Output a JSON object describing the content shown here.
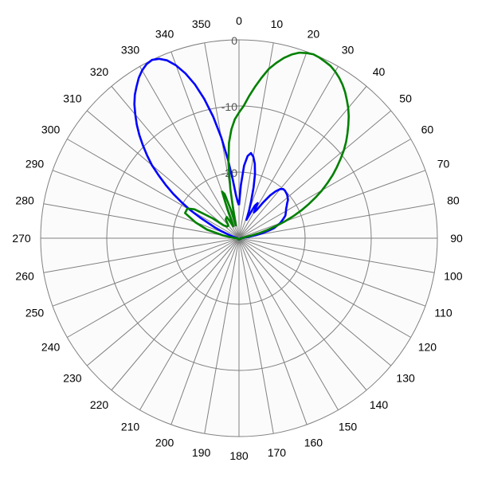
{
  "chart_data": {
    "type": "polar-line",
    "angle_labels": [
      "0",
      "10",
      "20",
      "30",
      "40",
      "50",
      "60",
      "70",
      "80",
      "90",
      "100",
      "110",
      "120",
      "130",
      "140",
      "150",
      "160",
      "170",
      "180",
      "190",
      "200",
      "210",
      "220",
      "230",
      "240",
      "250",
      "260",
      "270",
      "280",
      "290",
      "300",
      "310",
      "320",
      "330",
      "340",
      "350"
    ],
    "radial_labels": [
      "0",
      "-10",
      "-20"
    ],
    "r_range": [
      -30,
      0
    ],
    "angle_direction": "clockwise",
    "zero_at": "top",
    "grid": true,
    "series": [
      {
        "color": "#0000ff",
        "angles": [
          0,
          2,
          4,
          6,
          8,
          10,
          12,
          14,
          16,
          18,
          20,
          22,
          24,
          26,
          28,
          30,
          32,
          34,
          36,
          38,
          40,
          42,
          44,
          46,
          48,
          50,
          52,
          54,
          56,
          58,
          60,
          62,
          64,
          66,
          68,
          70,
          72,
          74,
          76,
          78,
          80,
          82,
          84,
          86,
          88,
          90,
          95,
          100,
          110,
          120,
          130,
          140,
          150,
          160,
          170,
          180,
          190,
          200,
          210,
          220,
          230,
          240,
          250,
          260,
          270,
          275,
          280,
          285,
          290,
          292,
          294,
          296,
          298,
          300,
          302,
          304,
          306,
          308,
          310,
          312,
          314,
          316,
          318,
          320,
          322,
          324,
          326,
          328,
          330,
          332,
          334,
          336,
          338,
          340,
          342,
          344,
          346,
          348,
          350,
          352,
          354,
          356,
          358
        ],
        "values": [
          -25,
          -22,
          -19,
          -17.5,
          -17,
          -17.5,
          -18.5,
          -20,
          -22,
          -24,
          -25.5,
          -27,
          -26,
          -24.5,
          -24,
          -25.5,
          -25,
          -23.5,
          -22,
          -21,
          -20.3,
          -20,
          -20,
          -20.1,
          -20.2,
          -20.4,
          -20.6,
          -21,
          -21.3,
          -21.6,
          -21.8,
          -22,
          -22.2,
          -22.6,
          -23,
          -23.4,
          -24,
          -24.5,
          -25.5,
          -26.5,
          -27.5,
          -28.5,
          -29,
          -29.5,
          -29.7,
          -29.7,
          -29.8,
          -29.8,
          -29.7,
          -29.8,
          -29.8,
          -29.8,
          -29.8,
          -29.8,
          -29.8,
          -29.8,
          -29.8,
          -29.8,
          -29.8,
          -29.8,
          -29.8,
          -29.8,
          -29.8,
          -29.8,
          -29.8,
          -29.7,
          -29.5,
          -29,
          -28,
          -27,
          -26,
          -25,
          -23.3,
          -21.5,
          -19.8,
          -18,
          -16.3,
          -14.6,
          -12.8,
          -11.3,
          -9.8,
          -8.3,
          -6.9,
          -5.6,
          -4.3,
          -3.2,
          -2.3,
          -1.4,
          -0.7,
          -0.2,
          0,
          -0.3,
          -1,
          -2.2,
          -3.8,
          -5.8,
          -8.3,
          -11.2,
          -14.5,
          -18,
          -21.2,
          -23.5,
          -24.5
        ]
      },
      {
        "color": "#008000",
        "angles": [
          0,
          2,
          4,
          6,
          8,
          10,
          12,
          14,
          16,
          18,
          20,
          22,
          24,
          26,
          28,
          30,
          32,
          34,
          36,
          38,
          40,
          42,
          44,
          46,
          48,
          50,
          52,
          54,
          56,
          58,
          60,
          62,
          64,
          66,
          68,
          70,
          72,
          74,
          76,
          78,
          80,
          85,
          90,
          100,
          110,
          120,
          130,
          140,
          150,
          160,
          170,
          180,
          190,
          200,
          210,
          220,
          230,
          240,
          250,
          260,
          270,
          275,
          280,
          285,
          290,
          295,
          300,
          303,
          305,
          307,
          310,
          315,
          320,
          325,
          330,
          332,
          334,
          336,
          338,
          340,
          342,
          344,
          346,
          348,
          350,
          352,
          354,
          356,
          358
        ],
        "values": [
          -11,
          -10,
          -8.5,
          -7,
          -5.5,
          -4,
          -2.9,
          -1.9,
          -1.1,
          -0.5,
          -0.2,
          0,
          -0.1,
          -0.3,
          -0.5,
          -0.9,
          -1.4,
          -2,
          -2.7,
          -3.5,
          -4.3,
          -5.2,
          -6.2,
          -7.2,
          -8.2,
          -9.3,
          -10.5,
          -11.7,
          -12.9,
          -14.2,
          -15.5,
          -16.9,
          -18.3,
          -19.7,
          -21.2,
          -22.7,
          -24.2,
          -25.6,
          -26.9,
          -28,
          -29,
          -29.5,
          -29.6,
          -29.7,
          -29.8,
          -29.8,
          -29.8,
          -29.8,
          -29.8,
          -29.8,
          -29.8,
          -29.8,
          -29.8,
          -29.8,
          -29.8,
          -29.8,
          -29.8,
          -29.8,
          -29.8,
          -29.8,
          -29.7,
          -29,
          -27.5,
          -25,
          -23,
          -21,
          -21,
          -22,
          -23.8,
          -25,
          -27,
          -27.5,
          -27.5,
          -26.5,
          -26.3,
          -27.3,
          -28,
          -27.5,
          -25.5,
          -22.5,
          -23,
          -25.5,
          -28,
          -26.3,
          -22.5,
          -18.5,
          -15.5,
          -13.5,
          -12
        ]
      }
    ]
  }
}
